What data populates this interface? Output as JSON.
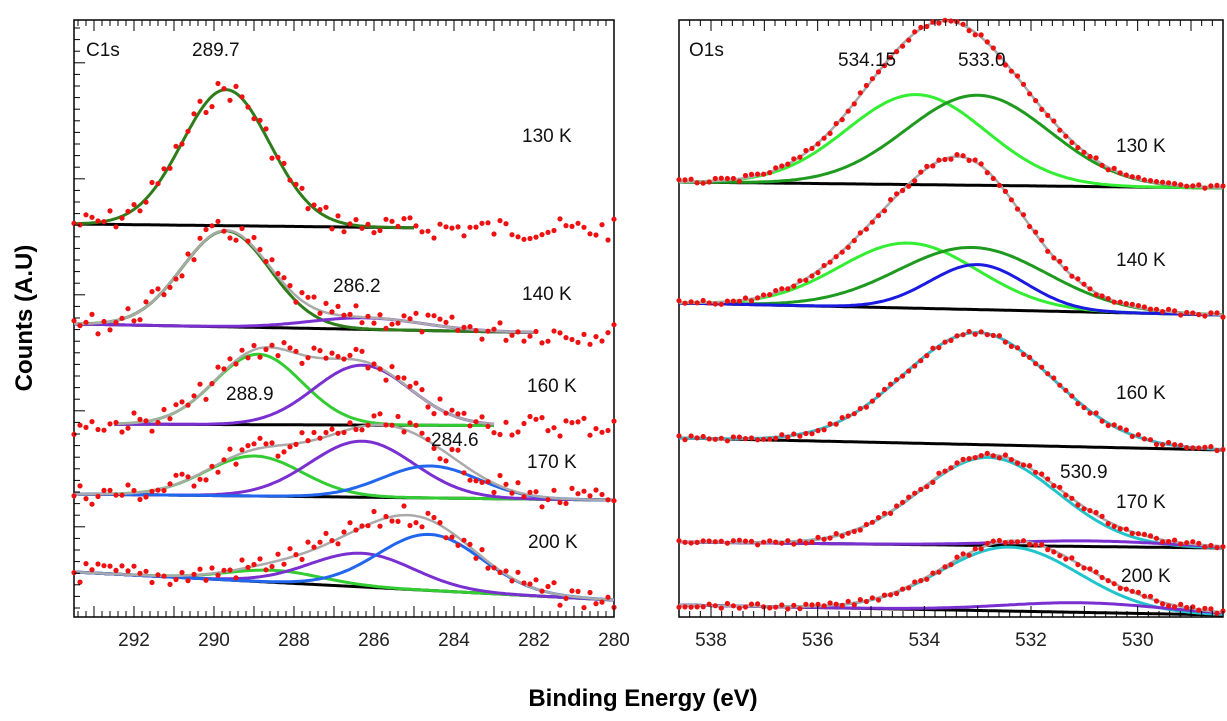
{
  "chart_data": {
    "type": "line",
    "xlabel": "Binding Energy (eV)",
    "ylabel": "Counts (A.U)",
    "panels": [
      {
        "id": "c1s",
        "title": "C1s",
        "xlim": [
          293.5,
          280
        ],
        "ticks": [
          292,
          290,
          288,
          286,
          284,
          282,
          280
        ],
        "peak_labels": [
          "289.7",
          "286.2",
          "288.9",
          "284.6"
        ],
        "spectra": [
          {
            "label": "130 K",
            "fit_range": [
              293.5,
              285.0
            ],
            "data_range": [
              293.5,
              280.0
            ],
            "peaks": [
              {
                "center": 289.7,
                "amp": 1.0,
                "width": 1.1,
                "color": "#2e7d1a"
              }
            ]
          },
          {
            "label": "140 K",
            "fit_range": [
              293.5,
              282.0
            ],
            "data_range": [
              293.5,
              280.0
            ],
            "peaks": [
              {
                "center": 289.7,
                "amp": 1.0,
                "width": 1.1,
                "color": "#2e7d1a"
              },
              {
                "center": 286.2,
                "amp": 0.12,
                "width": 1.4,
                "color": "#7a2fd0"
              }
            ]
          },
          {
            "label": "160 K",
            "fit_range": [
              292.5,
              283.0
            ],
            "data_range": [
              293.5,
              280.0
            ],
            "peaks": [
              {
                "center": 288.9,
                "amp": 0.8,
                "width": 1.1,
                "color": "#33cc33"
              },
              {
                "center": 286.3,
                "amp": 0.68,
                "width": 1.2,
                "color": "#7a2fd0"
              }
            ]
          },
          {
            "label": "170 K",
            "fit_range": [
              293.5,
              280.0
            ],
            "data_range": [
              293.5,
              280.0
            ],
            "peaks": [
              {
                "center": 289.0,
                "amp": 0.5,
                "width": 1.2,
                "color": "#33cc33"
              },
              {
                "center": 286.3,
                "amp": 0.7,
                "width": 1.3,
                "color": "#7a2fd0"
              },
              {
                "center": 284.6,
                "amp": 0.4,
                "width": 1.2,
                "color": "#2266ee"
              }
            ]
          },
          {
            "label": "200 K",
            "fit_range": [
              293.5,
              280.0
            ],
            "data_range": [
              293.5,
              280.0
            ],
            "peaks": [
              {
                "center": 288.5,
                "amp": 0.15,
                "width": 1.2,
                "color": "#33cc33"
              },
              {
                "center": 286.3,
                "amp": 0.42,
                "width": 1.3,
                "color": "#7a2fd0"
              },
              {
                "center": 284.6,
                "amp": 0.7,
                "width": 1.3,
                "color": "#2266ee"
              }
            ]
          }
        ]
      },
      {
        "id": "o1s",
        "title": "O1s",
        "xlim": [
          538.6,
          528.4
        ],
        "ticks": [
          538,
          536,
          534,
          532,
          530
        ],
        "peak_labels": [
          "534.15",
          "533.0",
          "530.9"
        ],
        "spectra": [
          {
            "label": "130 K",
            "fit_range": [
              538.6,
              528.4
            ],
            "data_range": [
              538.6,
              528.4
            ],
            "peaks": [
              {
                "center": 534.15,
                "amp": 0.9,
                "width": 1.3,
                "color": "#33ee33"
              },
              {
                "center": 533.0,
                "amp": 0.9,
                "width": 1.35,
                "color": "#1e9a1e"
              }
            ]
          },
          {
            "label": "140 K",
            "fit_range": [
              538.6,
              528.4
            ],
            "data_range": [
              538.6,
              528.4
            ],
            "peaks": [
              {
                "center": 534.3,
                "amp": 0.65,
                "width": 1.3,
                "color": "#33ee33"
              },
              {
                "center": 533.1,
                "amp": 0.62,
                "width": 1.4,
                "color": "#1e9a1e"
              },
              {
                "center": 533.0,
                "amp": 0.45,
                "width": 0.9,
                "color": "#1a1ae0"
              }
            ]
          },
          {
            "label": "160 K",
            "fit_range": [
              538.6,
              528.4
            ],
            "data_range": [
              538.6,
              528.4
            ],
            "peaks": [
              {
                "center": 533.0,
                "amp": 1.4,
                "width": 1.4,
                "color": "#3db8c8"
              }
            ]
          },
          {
            "label": "170 K",
            "fit_range": [
              538.6,
              528.4
            ],
            "data_range": [
              538.6,
              528.4
            ],
            "peaks": [
              {
                "center": 532.8,
                "amp": 1.1,
                "width": 1.3,
                "color": "#22c4cc"
              },
              {
                "center": 530.9,
                "amp": 0.07,
                "width": 1.5,
                "color": "#7a2fd0"
              }
            ]
          },
          {
            "label": "200 K",
            "fit_range": [
              538.6,
              528.4
            ],
            "data_range": [
              538.6,
              528.4
            ],
            "peaks": [
              {
                "center": 532.4,
                "amp": 0.8,
                "width": 1.3,
                "color": "#22c4cc"
              },
              {
                "center": 531.0,
                "amp": 0.12,
                "width": 1.5,
                "color": "#7a2fd0"
              }
            ]
          }
        ]
      }
    ],
    "colors": {
      "data_points": "#ee1111",
      "envelope": "#aaaaaa",
      "background": "#000000"
    }
  }
}
